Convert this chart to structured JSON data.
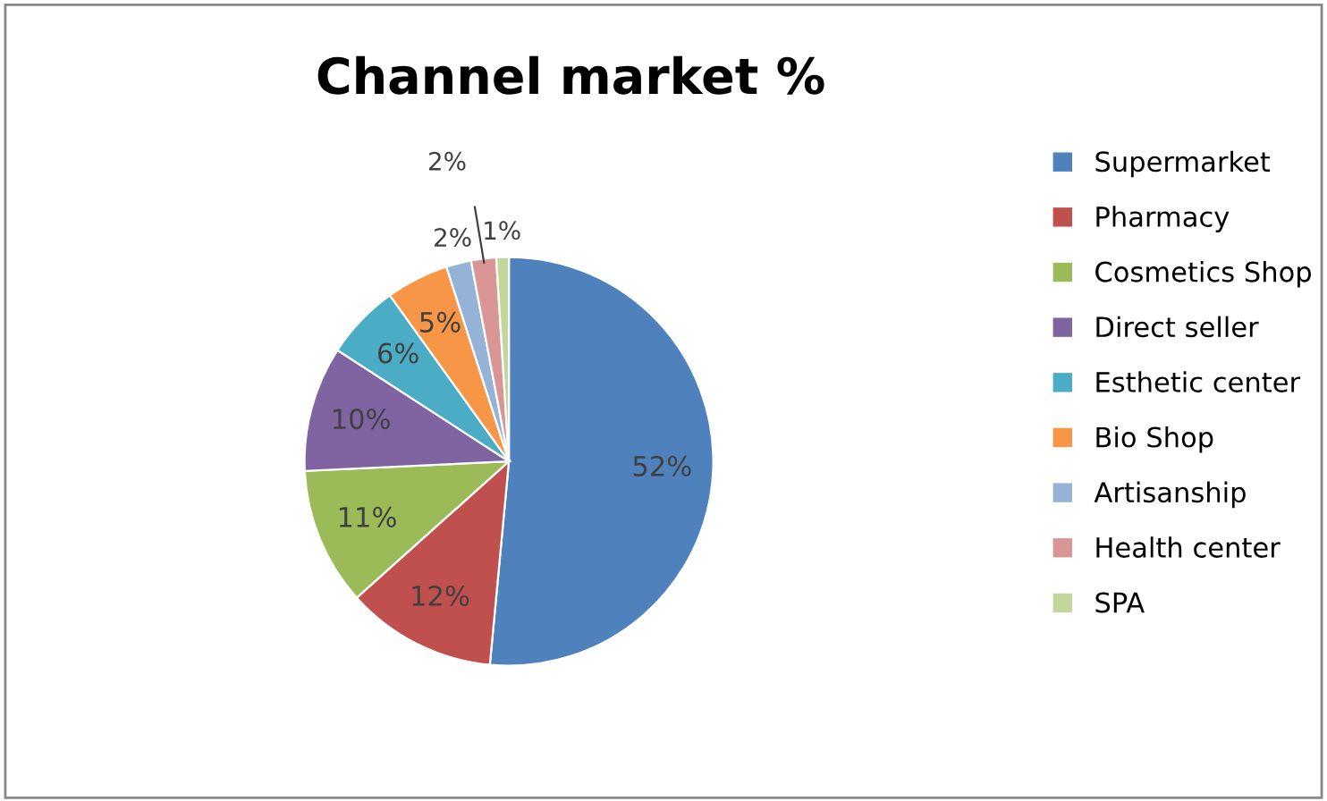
{
  "chart_data": {
    "type": "pie",
    "title": "Channel market %",
    "categories": [
      "Supermarket",
      "Pharmacy",
      "Cosmetics Shop",
      "Direct seller",
      "Esthetic center",
      "Bio Shop",
      "Artisanship",
      "Health center",
      "SPA"
    ],
    "values": [
      52,
      12,
      11,
      10,
      6,
      5,
      2,
      2,
      1
    ],
    "value_labels": [
      "52%",
      "12%",
      "11%",
      "10%",
      "6%",
      "5%",
      "2%",
      "2%",
      "1%"
    ],
    "colors": [
      "#4f81bd",
      "#c0504d",
      "#9bbb59",
      "#8064a2",
      "#4bacc6",
      "#f79646",
      "#95b3d7",
      "#d99694",
      "#c3d69b"
    ],
    "legend": "right"
  }
}
